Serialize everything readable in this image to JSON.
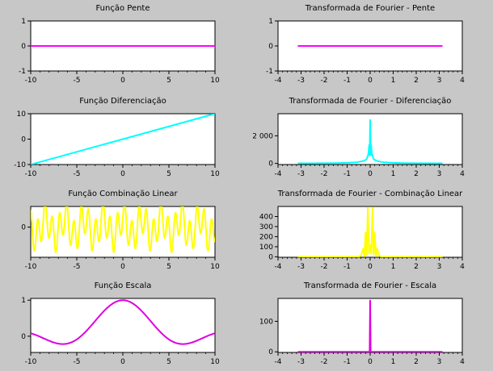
{
  "window": {
    "background": "#c7c7c7"
  },
  "chart_data": [
    {
      "type": "line",
      "title": "Função Pente",
      "xlabel": "",
      "ylabel": "",
      "xlim": [
        -10,
        10
      ],
      "ylim": [
        -1,
        1
      ],
      "xticks": [
        -10,
        -5,
        0,
        5,
        10
      ],
      "xtick_labels": [
        "-10",
        "-5",
        "0",
        "5",
        "10"
      ],
      "yticks": [
        -1,
        0,
        1
      ],
      "ytick_labels": [
        "-1",
        "0",
        "1"
      ],
      "grid": false,
      "color": "#ff00ff",
      "series": [
        {
          "x": [
            -10,
            10
          ],
          "y": [
            0,
            0
          ]
        }
      ]
    },
    {
      "type": "line",
      "title": "Transformada de Fourier - Pente",
      "xlabel": "",
      "ylabel": "",
      "xlim": [
        -4,
        4
      ],
      "ylim": [
        -1,
        1
      ],
      "xticks": [
        -4,
        -3,
        -2,
        -1,
        0,
        1,
        2,
        3,
        4
      ],
      "xtick_labels": [
        "-4",
        "-3",
        "-2",
        "-1",
        "0",
        "1",
        "2",
        "3",
        "4"
      ],
      "yticks": [
        -1,
        0,
        1
      ],
      "ytick_labels": [
        "-1",
        "0",
        "1"
      ],
      "grid": false,
      "color": "#ff00ff",
      "series": [
        {
          "x": [
            -3.14,
            3.14
          ],
          "y": [
            0,
            0
          ]
        }
      ]
    },
    {
      "type": "line",
      "title": "Função Diferenciação",
      "xlabel": "",
      "ylabel": "",
      "xlim": [
        -10,
        10
      ],
      "ylim": [
        -10,
        10
      ],
      "xticks": [
        -10,
        -5,
        0,
        5,
        10
      ],
      "xtick_labels": [
        "-10",
        "-5",
        "0",
        "5",
        "10"
      ],
      "yticks": [
        -10,
        0,
        10
      ],
      "ytick_labels": [
        "-10",
        "0",
        "10"
      ],
      "grid": false,
      "color": "#00ffff",
      "series": [
        {
          "x": [
            -10,
            10
          ],
          "y": [
            -10,
            10
          ]
        }
      ]
    },
    {
      "type": "line",
      "title": "Transformada de Fourier - Diferenciação",
      "xlabel": "",
      "ylabel": "",
      "xlim": [
        -4,
        4
      ],
      "ylim": [
        -80,
        3600
      ],
      "xticks": [
        -4,
        -3,
        -2,
        -1,
        0,
        1,
        2,
        3,
        4
      ],
      "xtick_labels": [
        "-4",
        "-3",
        "-2",
        "-1",
        "0",
        "1",
        "2",
        "3",
        "4"
      ],
      "yticks": [
        0,
        2000
      ],
      "ytick_labels": [
        "0",
        "2 000"
      ],
      "grid": false,
      "color": "#00ffff",
      "series": [
        {
          "x": [
            -3.14,
            -2.5,
            -2.0,
            -1.5,
            -1.0,
            -0.6,
            -0.4,
            -0.25,
            -0.15,
            -0.08,
            -0.04,
            -0.02,
            0,
            0.02,
            0.04,
            0.08,
            0.15,
            0.25,
            0.4,
            0.6,
            1.0,
            1.5,
            2.0,
            2.5,
            3.14
          ],
          "y": [
            5,
            8,
            12,
            20,
            40,
            80,
            140,
            200,
            320,
            650,
            1350,
            600,
            3150,
            600,
            1350,
            650,
            320,
            200,
            140,
            80,
            40,
            20,
            12,
            8,
            5
          ]
        }
      ]
    },
    {
      "type": "line",
      "title": "Função Combinação Linear",
      "xlabel": "",
      "ylabel": "",
      "xlim": [
        -10,
        10
      ],
      "ylim": [
        -1.9,
        1.3
      ],
      "xticks": [
        -10,
        -5,
        0,
        5,
        10
      ],
      "xtick_labels": [
        "-10",
        "-5",
        "0",
        "5",
        "10"
      ],
      "yticks": [
        0
      ],
      "ytick_labels": [
        "0"
      ],
      "grid": false,
      "color": "#ffff00",
      "series": [
        {
          "function": "sin(8x) + 0.6·cos(3x)",
          "x_range": [
            -10,
            10
          ]
        }
      ]
    },
    {
      "type": "line",
      "title": "Transformada de Fourier - Combinação Linear",
      "xlabel": "",
      "ylabel": "",
      "xlim": [
        -4,
        4
      ],
      "ylim": [
        -5,
        500
      ],
      "xticks": [
        -4,
        -3,
        -2,
        -1,
        0,
        1,
        2,
        3,
        4
      ],
      "xtick_labels": [
        "-4",
        "-3",
        "-2",
        "-1",
        "0",
        "1",
        "2",
        "3",
        "4"
      ],
      "yticks": [
        0,
        100,
        200,
        300,
        400
      ],
      "ytick_labels": [
        "0",
        "100",
        "200",
        "300",
        "400"
      ],
      "grid": false,
      "color": "#ffff00",
      "series": [
        {
          "x": [
            -3.14,
            -0.5,
            -0.4,
            -0.3,
            -0.25,
            -0.2,
            -0.15,
            -0.1,
            -0.05,
            0,
            0.05,
            0.1,
            0.15,
            0.2,
            0.25,
            0.3,
            0.4,
            0.5,
            3.14
          ],
          "y": [
            0,
            0,
            10,
            80,
            5,
            240,
            20,
            490,
            30,
            120,
            30,
            490,
            20,
            240,
            5,
            80,
            10,
            0,
            0
          ]
        }
      ]
    },
    {
      "type": "line",
      "title": "Função Escala",
      "xlabel": "",
      "ylabel": "",
      "xlim": [
        -10,
        10
      ],
      "ylim": [
        -0.45,
        1.05
      ],
      "xticks": [
        -10,
        -5,
        0,
        5,
        10
      ],
      "xtick_labels": [
        "-10",
        "-5",
        "0",
        "5",
        "10"
      ],
      "yticks": [
        0,
        1
      ],
      "ytick_labels": [
        "0",
        "1"
      ],
      "grid": false,
      "color": "#e000e0",
      "series": [
        {
          "function": "sin(x/1.45)/(x/1.45)",
          "x_range": [
            -10,
            10
          ]
        }
      ]
    },
    {
      "type": "line",
      "title": "Transformada de Fourier - Escala",
      "xlabel": "",
      "ylabel": "",
      "xlim": [
        -4,
        4
      ],
      "ylim": [
        -2,
        175
      ],
      "xticks": [
        -4,
        -3,
        -2,
        -1,
        0,
        1,
        2,
        3,
        4
      ],
      "xtick_labels": [
        "-4",
        "-3",
        "-2",
        "-1",
        "0",
        "1",
        "2",
        "3",
        "4"
      ],
      "yticks": [
        0,
        100
      ],
      "ytick_labels": [
        "0",
        "100"
      ],
      "grid": false,
      "color": "#e000e0",
      "series": [
        {
          "x": [
            -3.14,
            -0.02,
            0,
            0.02,
            3.14
          ],
          "y": [
            0,
            0,
            168,
            0,
            0
          ]
        }
      ]
    }
  ]
}
